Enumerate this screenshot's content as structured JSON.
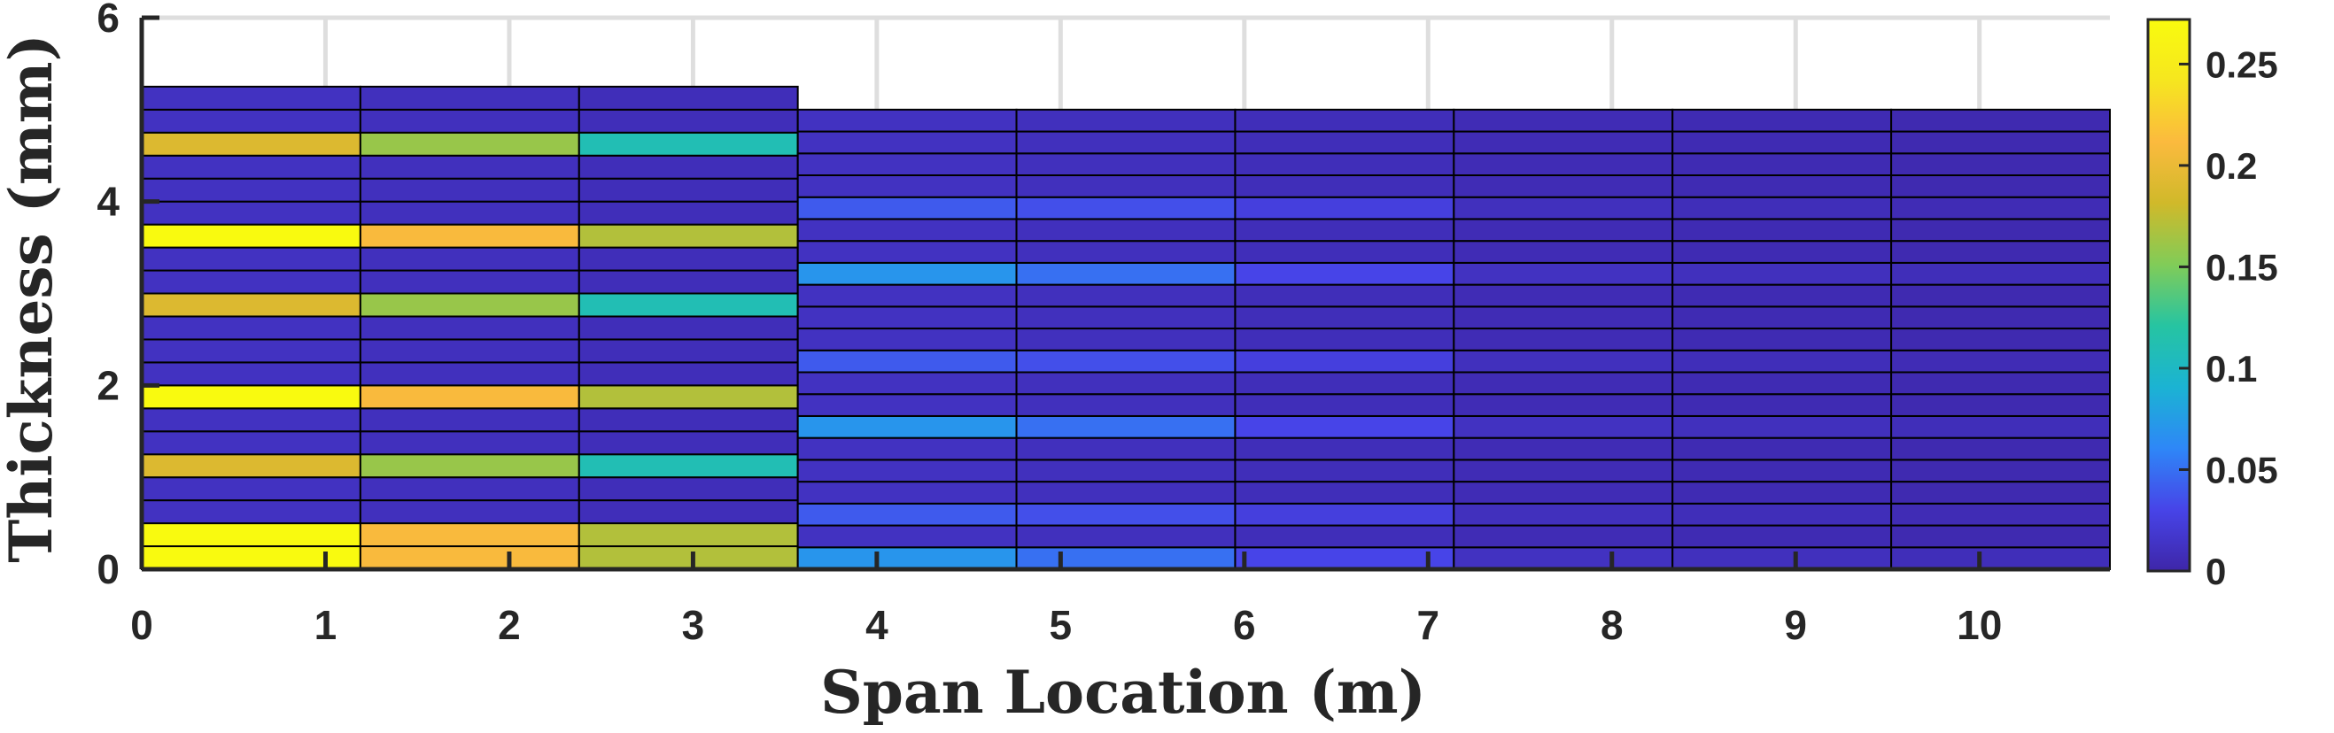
{
  "chart_data": {
    "type": "heatmap",
    "xlabel": "Span Location (m)",
    "ylabel": "Thickness (mm)",
    "xlim": [
      0,
      10.71
    ],
    "ylim": [
      0,
      6
    ],
    "x_ticks": [
      0,
      1,
      2,
      3,
      4,
      5,
      6,
      7,
      8,
      9,
      10
    ],
    "y_ticks": [
      0,
      2,
      4,
      6
    ],
    "grid": true,
    "colorbar": {
      "range": [
        0,
        0.272
      ],
      "ticks": [
        0,
        0.05,
        0.1,
        0.15,
        0.2,
        0.25
      ],
      "tick_labels": [
        "0",
        "0.05",
        "0.1",
        "0.15",
        "0.2",
        "0.25"
      ],
      "colors": [
        "#3e26a8",
        "#4744e8",
        "#2e87f7",
        "#1bb3d3",
        "#26c4a2",
        "#81cc58",
        "#d0b92a",
        "#fbba3e",
        "#f6e61f",
        "#f9fb0e"
      ]
    },
    "columns": [
      {
        "x0": 0.0,
        "x1": 1.19
      },
      {
        "x0": 1.19,
        "x1": 2.38
      },
      {
        "x0": 2.38,
        "x1": 3.57
      },
      {
        "x0": 3.57,
        "x1": 4.76
      },
      {
        "x0": 4.76,
        "x1": 5.95
      },
      {
        "x0": 5.95,
        "x1": 7.14
      },
      {
        "x0": 7.14,
        "x1": 8.33
      },
      {
        "x0": 8.33,
        "x1": 9.52
      },
      {
        "x0": 9.52,
        "x1": 10.71
      }
    ],
    "section_thickness": [
      5.25,
      5.25,
      5.25,
      5.0,
      5.0,
      5.0,
      5.0,
      5.0,
      5.0
    ],
    "layers": 21,
    "values": [
      [
        0.27,
        0.21,
        0.17,
        0.07,
        0.05,
        0.03,
        0.012,
        0.01,
        0.008
      ],
      [
        0.27,
        0.21,
        0.17,
        0.012,
        0.01,
        0.008,
        0.006,
        0.005,
        0.004
      ],
      [
        0.012,
        0.01,
        0.008,
        0.04,
        0.035,
        0.025,
        0.01,
        0.008,
        0.006
      ],
      [
        0.012,
        0.01,
        0.008,
        0.012,
        0.01,
        0.008,
        0.006,
        0.005,
        0.004
      ],
      [
        0.19,
        0.16,
        0.11,
        0.012,
        0.01,
        0.008,
        0.006,
        0.005,
        0.004
      ],
      [
        0.012,
        0.01,
        0.008,
        0.012,
        0.01,
        0.008,
        0.006,
        0.005,
        0.004
      ],
      [
        0.012,
        0.01,
        0.008,
        0.07,
        0.05,
        0.03,
        0.012,
        0.01,
        0.008
      ],
      [
        0.27,
        0.21,
        0.17,
        0.012,
        0.01,
        0.008,
        0.006,
        0.005,
        0.004
      ],
      [
        0.012,
        0.01,
        0.008,
        0.012,
        0.01,
        0.008,
        0.006,
        0.005,
        0.004
      ],
      [
        0.012,
        0.01,
        0.008,
        0.04,
        0.035,
        0.025,
        0.01,
        0.008,
        0.006
      ],
      [
        0.012,
        0.01,
        0.008,
        0.012,
        0.01,
        0.008,
        0.006,
        0.005,
        0.004
      ],
      [
        0.19,
        0.16,
        0.11,
        0.012,
        0.01,
        0.008,
        0.006,
        0.005,
        0.004
      ],
      [
        0.012,
        0.01,
        0.008,
        0.012,
        0.01,
        0.008,
        0.006,
        0.005,
        0.004
      ],
      [
        0.012,
        0.01,
        0.008,
        0.07,
        0.05,
        0.03,
        0.012,
        0.01,
        0.008
      ],
      [
        0.27,
        0.21,
        0.17,
        0.012,
        0.01,
        0.008,
        0.006,
        0.005,
        0.004
      ],
      [
        0.012,
        0.01,
        0.008,
        0.012,
        0.01,
        0.008,
        0.006,
        0.005,
        0.004
      ],
      [
        0.012,
        0.01,
        0.008,
        0.04,
        0.035,
        0.025,
        0.01,
        0.008,
        0.006
      ],
      [
        0.012,
        0.01,
        0.008,
        0.012,
        0.01,
        0.008,
        0.006,
        0.005,
        0.004
      ],
      [
        0.19,
        0.16,
        0.11,
        0.012,
        0.01,
        0.008,
        0.006,
        0.005,
        0.004
      ],
      [
        0.012,
        0.01,
        0.008,
        0.012,
        0.01,
        0.008,
        0.006,
        0.005,
        0.004
      ],
      [
        0.012,
        0.01,
        0.008,
        0.012,
        0.01,
        0.008,
        0.006,
        0.005,
        0.004
      ]
    ]
  }
}
